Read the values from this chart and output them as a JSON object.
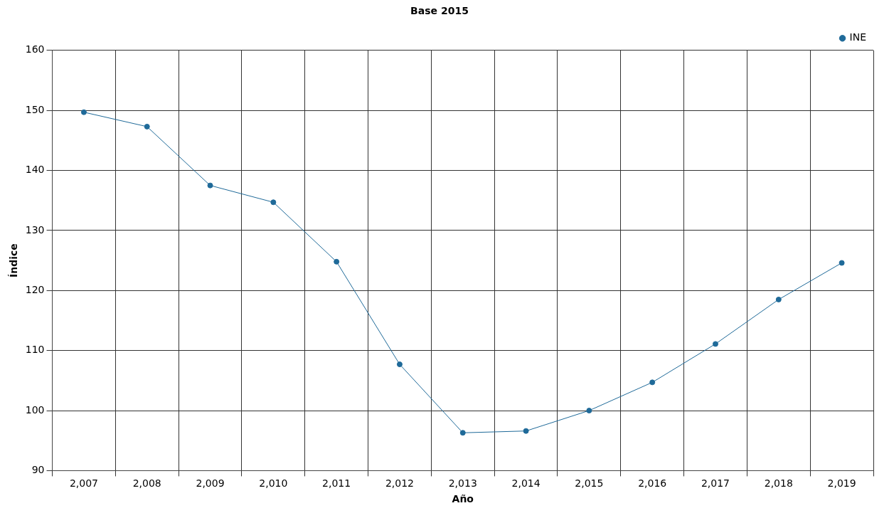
{
  "chart_data": {
    "type": "line",
    "title": "Base 2015",
    "xlabel": "Año",
    "ylabel": "Índice",
    "categories": [
      "2,007",
      "2,008",
      "2,009",
      "2,010",
      "2,011",
      "2,012",
      "2,013",
      "2,014",
      "2,015",
      "2,016",
      "2,017",
      "2,018",
      "2,019"
    ],
    "series": [
      {
        "name": "INE",
        "color": "#1f6a99",
        "values": [
          149.7,
          147.3,
          137.5,
          134.7,
          124.8,
          107.7,
          96.3,
          96.6,
          100.0,
          104.7,
          111.1,
          118.5,
          124.6
        ]
      }
    ],
    "ylim": [
      90,
      160
    ],
    "yticks": [
      90,
      100,
      110,
      120,
      130,
      140,
      150,
      160
    ],
    "grid": true,
    "legend": "top right",
    "marker": "circle",
    "line_style": "solid"
  }
}
